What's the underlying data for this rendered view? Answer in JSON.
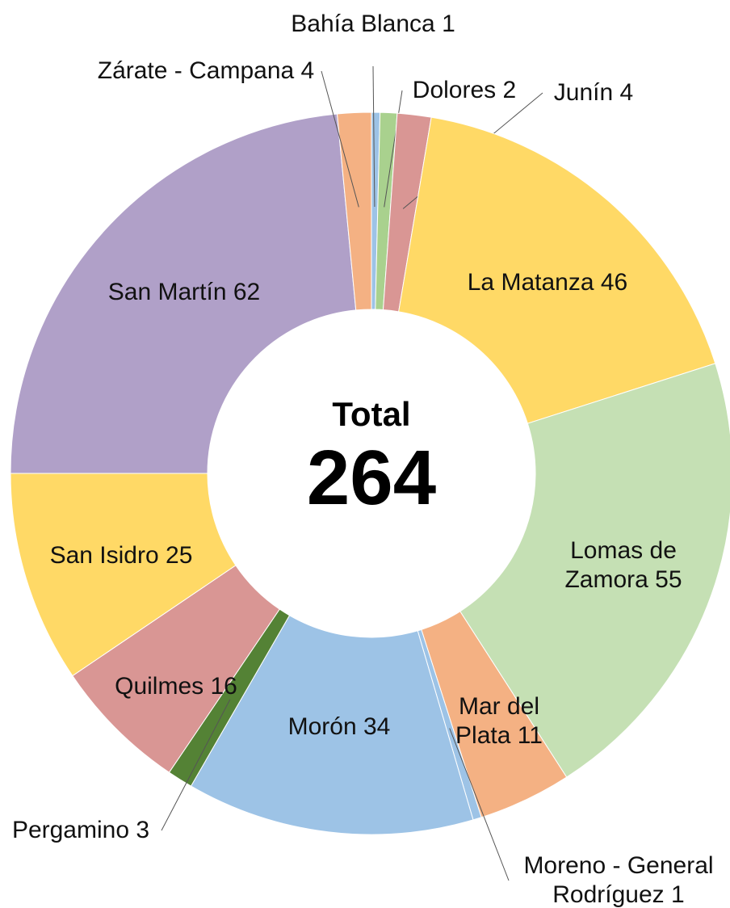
{
  "chart_data": {
    "type": "donut",
    "categories": [
      "Bahía Blanca",
      "Dolores",
      "Junín",
      "La Matanza",
      "Lomas de Zamora",
      "Mar del Plata",
      "Moreno - General Rodríguez",
      "Morón",
      "Pergamino",
      "Quilmes",
      "San Isidro",
      "San Martín",
      "Zárate - Campana"
    ],
    "values": [
      1,
      2,
      4,
      46,
      55,
      11,
      1,
      34,
      3,
      16,
      25,
      62,
      4
    ],
    "colors": [
      "#9dc3e6",
      "#a9d18e",
      "#d99694",
      "#ffd966",
      "#c5e0b4",
      "#f4b183",
      "#9dc3e6",
      "#9dc3e6",
      "#548235",
      "#d99694",
      "#ffd966",
      "#b0a0c8",
      "#f4b183"
    ],
    "center_label": "Total",
    "total": 264
  }
}
